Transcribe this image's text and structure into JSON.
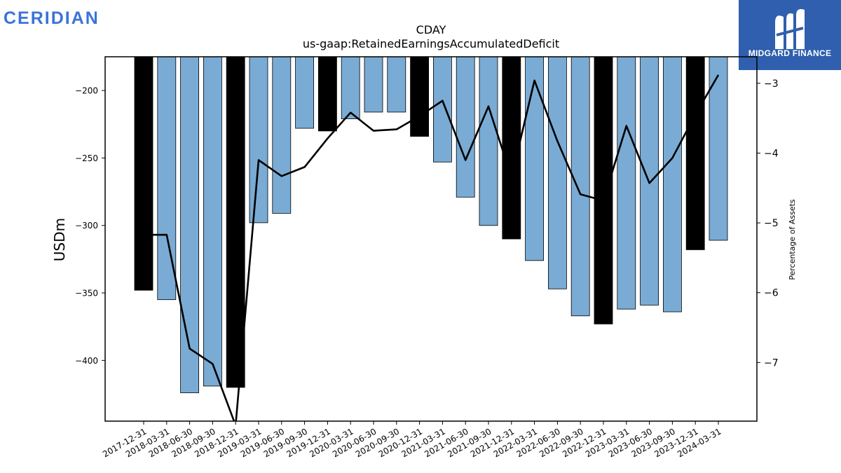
{
  "brand": {
    "left_logo": "CERIDIAN",
    "right_logo": "MIDGARD FINANCE"
  },
  "chart_data": {
    "type": "bar",
    "title": "CDAY",
    "subtitle": "us-gaap:RetainedEarningsAccumulatedDeficit",
    "ylabel": "USDm",
    "y2label": "Percentage of Assets",
    "ylim": [
      -445,
      -175
    ],
    "y2lim": [
      -7.84,
      -2.62
    ],
    "yticks": [
      -200,
      -250,
      -300,
      -350,
      -400
    ],
    "y2ticks": [
      -3,
      -4,
      -5,
      -6,
      -7
    ],
    "categories": [
      "2017-12-31",
      "2018-03-31",
      "2018-06-30",
      "2018-09-30",
      "2018-12-31",
      "2019-03-31",
      "2019-06-30",
      "2019-09-30",
      "2019-12-31",
      "2020-03-31",
      "2020-06-30",
      "2020-09-30",
      "2020-12-31",
      "2021-03-31",
      "2021-06-30",
      "2021-09-30",
      "2021-12-31",
      "2022-03-31",
      "2022-06-30",
      "2022-09-30",
      "2022-12-31",
      "2023-03-31",
      "2023-06-30",
      "2023-09-30",
      "2023-12-31",
      "2024-03-31"
    ],
    "series": [
      {
        "kind": "bar",
        "axis": "left",
        "values": [
          -348,
          -355,
          -424,
          -419,
          -420,
          -298,
          -291,
          -228,
          -230,
          -221,
          -216,
          -216,
          -234,
          -253,
          -279,
          -300,
          -310,
          -326,
          -347,
          -367,
          -373,
          -362,
          -359,
          -364,
          -318,
          -311
        ],
        "year_end": [
          true,
          false,
          false,
          false,
          true,
          false,
          false,
          false,
          true,
          false,
          false,
          false,
          true,
          false,
          false,
          false,
          true,
          false,
          false,
          false,
          true,
          false,
          false,
          false,
          true,
          false
        ]
      },
      {
        "kind": "line",
        "axis": "right",
        "values": [
          -5.17,
          -5.17,
          -6.8,
          -7.02,
          -7.9,
          -4.1,
          -4.33,
          -4.2,
          -3.79,
          -3.42,
          -3.68,
          -3.66,
          -3.47,
          -3.25,
          -4.1,
          -3.33,
          -4.35,
          -2.96,
          -3.83,
          -4.59,
          -4.68,
          -3.61,
          -4.43,
          -4.07,
          -3.45,
          -2.88
        ]
      }
    ],
    "colors": {
      "bar": "#7aabd4",
      "bar_year_end": "#000000",
      "line": "#000000"
    },
    "grid": false
  }
}
